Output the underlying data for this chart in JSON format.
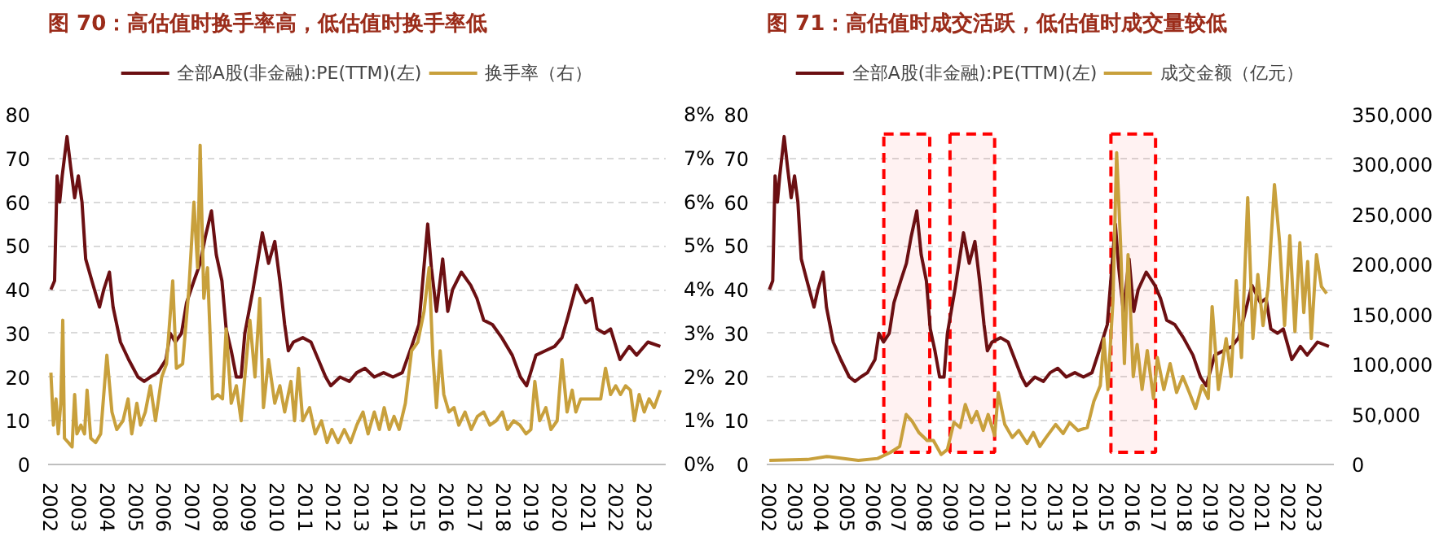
{
  "chart_data": [
    {
      "type": "line",
      "title": "图 70：高估值时换手率高，低估值时换手率低",
      "xlim": [
        2001.9,
        2023.75
      ],
      "xticks": [
        2002,
        2003,
        2004,
        2005,
        2006,
        2007,
        2008,
        2009,
        2010,
        2011,
        2012,
        2013,
        2014,
        2015,
        2016,
        2017,
        2018,
        2019,
        2020,
        2021,
        2022,
        2023
      ],
      "ylim": [
        0,
        80
      ],
      "yticks": [
        0,
        10,
        20,
        30,
        40,
        50,
        60,
        70,
        80
      ],
      "y2lim": [
        0,
        8
      ],
      "y2ticks": [
        {
          "value": 0,
          "label": "0%"
        },
        {
          "value": 1,
          "label": "1%"
        },
        {
          "value": 2,
          "label": "2%"
        },
        {
          "value": 3,
          "label": "3%"
        },
        {
          "value": 4,
          "label": "4%"
        },
        {
          "value": 5,
          "label": "5%"
        },
        {
          "value": 6,
          "label": "6%"
        },
        {
          "value": 7,
          "label": "7%"
        },
        {
          "value": 8,
          "label": "8%"
        }
      ],
      "grid": "y",
      "legend": "top",
      "line_style": "solid",
      "series": [
        {
          "name": "全部A股(非金融):PE(TTM)(左)",
          "color": "#6b0f12",
          "x": [
            2002.0,
            2002.13,
            2002.22,
            2002.31,
            2002.4,
            2002.57,
            2002.7,
            2002.84,
            2002.97,
            2003.1,
            2003.23,
            2003.45,
            2003.72,
            2003.87,
            2004.07,
            2004.2,
            2004.46,
            2004.75,
            2005.08,
            2005.3,
            2005.52,
            2005.78,
            2006.07,
            2006.22,
            2006.4,
            2006.62,
            2006.8,
            2007.06,
            2007.28,
            2007.46,
            2007.68,
            2007.85,
            2008.05,
            2008.2,
            2008.38,
            2008.56,
            2008.73,
            2008.86,
            2009.15,
            2009.48,
            2009.7,
            2009.92,
            2010.1,
            2010.27,
            2010.4,
            2010.58,
            2010.91,
            2011.2,
            2011.46,
            2011.72,
            2011.9,
            2012.23,
            2012.56,
            2012.82,
            2013.11,
            2013.44,
            2013.77,
            2014.1,
            2014.43,
            2014.76,
            2015.02,
            2015.33,
            2015.46,
            2015.64,
            2015.86,
            2016.04,
            2016.21,
            2016.52,
            2016.85,
            2017.07,
            2017.31,
            2017.62,
            2017.95,
            2018.32,
            2018.61,
            2018.83,
            2019.16,
            2019.49,
            2019.82,
            2020.08,
            2020.3,
            2020.59,
            2020.92,
            2021.14,
            2021.32,
            2021.58,
            2021.8,
            2022.13,
            2022.46,
            2022.72,
            2023.12,
            2023.56
          ],
          "values": [
            40,
            42,
            66,
            60,
            66,
            75,
            68,
            61,
            66,
            60,
            47,
            42,
            36,
            40,
            44,
            36,
            28,
            24,
            20,
            19,
            20,
            21,
            24,
            30,
            28,
            30,
            37,
            42,
            46,
            52,
            58,
            48,
            42,
            31,
            26,
            20,
            20,
            30,
            40,
            53,
            46,
            51,
            42,
            32,
            26,
            28,
            29,
            28,
            24,
            20,
            18,
            20,
            19,
            21,
            22,
            20,
            21,
            20,
            21,
            27,
            32,
            55,
            45,
            35,
            47,
            35,
            40,
            44,
            41,
            38,
            33,
            32,
            29,
            25,
            20,
            18,
            25,
            26,
            27,
            29,
            34,
            41,
            37,
            38,
            31,
            30,
            31,
            24,
            27,
            25,
            28,
            27
          ]
        },
        {
          "name": "换手率（右）",
          "color": "#c8a03c",
          "axis": "y2",
          "x": [
            2002.0,
            2002.09,
            2002.18,
            2002.26,
            2002.35,
            2002.42,
            2002.48,
            2002.62,
            2002.75,
            2002.84,
            2002.92,
            2003.06,
            2003.19,
            2003.28,
            2003.41,
            2003.58,
            2003.76,
            2003.98,
            2004.16,
            2004.33,
            2004.55,
            2004.73,
            2004.86,
            2005.04,
            2005.17,
            2005.34,
            2005.52,
            2005.7,
            2005.92,
            2006.09,
            2006.31,
            2006.44,
            2006.66,
            2006.88,
            2007.06,
            2007.19,
            2007.28,
            2007.41,
            2007.54,
            2007.72,
            2007.9,
            2008.07,
            2008.2,
            2008.38,
            2008.56,
            2008.73,
            2008.86,
            2009.04,
            2009.22,
            2009.39,
            2009.52,
            2009.7,
            2009.92,
            2010.1,
            2010.27,
            2010.49,
            2010.62,
            2010.76,
            2010.91,
            2011.15,
            2011.35,
            2011.57,
            2011.77,
            2011.94,
            2012.16,
            2012.38,
            2012.6,
            2012.82,
            2013.04,
            2013.22,
            2013.44,
            2013.62,
            2013.79,
            2013.97,
            2014.14,
            2014.32,
            2014.54,
            2014.76,
            2014.98,
            2015.2,
            2015.38,
            2015.51,
            2015.64,
            2015.77,
            2015.9,
            2016.08,
            2016.26,
            2016.43,
            2016.65,
            2016.87,
            2017.09,
            2017.31,
            2017.53,
            2017.75,
            2017.97,
            2018.15,
            2018.37,
            2018.59,
            2018.81,
            2018.98,
            2019.12,
            2019.29,
            2019.51,
            2019.69,
            2019.91,
            2020.08,
            2020.26,
            2020.44,
            2020.57,
            2020.74,
            2021.01,
            2021.23,
            2021.45,
            2021.62,
            2021.8,
            2021.98,
            2022.15,
            2022.33,
            2022.5,
            2022.64,
            2022.81,
            2022.99,
            2023.16,
            2023.34,
            2023.56
          ],
          "values": [
            2.1,
            0.9,
            1.5,
            0.7,
            1.4,
            3.3,
            0.6,
            0.5,
            0.4,
            1.6,
            0.7,
            0.9,
            0.7,
            1.7,
            0.6,
            0.5,
            0.7,
            2.5,
            1.2,
            0.8,
            1.0,
            1.5,
            0.7,
            1.4,
            0.9,
            1.2,
            1.8,
            1.0,
            2.0,
            2.3,
            4.2,
            2.2,
            2.3,
            4.0,
            6.0,
            4.5,
            7.3,
            3.8,
            4.5,
            1.5,
            1.6,
            1.5,
            3.1,
            1.4,
            1.8,
            1.0,
            2.0,
            3.3,
            2.0,
            3.8,
            1.3,
            2.4,
            1.4,
            1.8,
            1.2,
            1.9,
            1.0,
            2.2,
            1.0,
            1.3,
            0.7,
            1.0,
            0.5,
            0.8,
            0.5,
            0.8,
            0.5,
            0.9,
            1.2,
            0.7,
            1.2,
            0.8,
            1.3,
            0.8,
            1.1,
            0.8,
            1.4,
            2.6,
            2.8,
            3.5,
            4.5,
            2.5,
            1.3,
            2.6,
            1.6,
            1.2,
            1.3,
            0.9,
            1.2,
            0.8,
            1.1,
            1.2,
            0.9,
            1.0,
            1.2,
            0.8,
            1.0,
            0.9,
            0.7,
            0.8,
            1.9,
            1.0,
            1.3,
            0.8,
            1.0,
            2.4,
            1.2,
            1.7,
            1.2,
            1.5,
            1.5,
            1.5,
            1.5,
            2.2,
            1.6,
            1.8,
            1.6,
            1.8,
            1.7,
            1.0,
            1.6,
            1.2,
            1.5,
            1.3,
            1.7
          ]
        }
      ]
    },
    {
      "type": "line",
      "title": "图 71：高估值时成交活跃，低估值时成交量较低",
      "xlim": [
        2001.9,
        2023.75
      ],
      "xticks": [
        2002,
        2003,
        2004,
        2005,
        2006,
        2007,
        2008,
        2009,
        2010,
        2011,
        2012,
        2013,
        2014,
        2015,
        2016,
        2017,
        2018,
        2019,
        2020,
        2021,
        2022,
        2023
      ],
      "ylim": [
        0,
        80
      ],
      "yticks": [
        0,
        10,
        20,
        30,
        40,
        50,
        60,
        70,
        80
      ],
      "y2lim": [
        0,
        350000
      ],
      "y2ticks": [
        0,
        {
          "value": 50000,
          "label": "50,000"
        },
        {
          "value": 100000,
          "label": "100,000"
        },
        {
          "value": 150000,
          "label": "150,000"
        },
        {
          "value": 200000,
          "label": "200,000"
        },
        {
          "value": 250000,
          "label": "250,000"
        },
        {
          "value": 300000,
          "label": "300,000"
        },
        {
          "value": 350000,
          "label": "350,000"
        }
      ],
      "grid": "y",
      "legend": "top",
      "line_style": "solid",
      "bands": [
        {
          "axis": "x",
          "from": 2006.41,
          "to": 2008.18,
          "color": "#ff0000"
        },
        {
          "axis": "x",
          "from": 2008.96,
          "to": 2010.68,
          "color": "#ff0000"
        },
        {
          "axis": "x",
          "from": 2015.16,
          "to": 2016.88,
          "color": "#ff0000"
        }
      ],
      "series": [
        {
          "name": "全部A股(非金融):PE(TTM)(左)",
          "color": "#6b0f12",
          "x": [
            2002.0,
            2002.13,
            2002.22,
            2002.31,
            2002.4,
            2002.57,
            2002.7,
            2002.84,
            2002.97,
            2003.1,
            2003.23,
            2003.45,
            2003.72,
            2003.87,
            2004.07,
            2004.2,
            2004.46,
            2004.75,
            2005.08,
            2005.3,
            2005.52,
            2005.78,
            2006.07,
            2006.22,
            2006.4,
            2006.62,
            2006.8,
            2007.06,
            2007.28,
            2007.46,
            2007.68,
            2007.85,
            2008.05,
            2008.2,
            2008.38,
            2008.56,
            2008.73,
            2008.86,
            2009.15,
            2009.48,
            2009.7,
            2009.92,
            2010.1,
            2010.27,
            2010.4,
            2010.58,
            2010.91,
            2011.2,
            2011.46,
            2011.72,
            2011.9,
            2012.23,
            2012.56,
            2012.82,
            2013.11,
            2013.44,
            2013.77,
            2014.1,
            2014.43,
            2014.76,
            2015.02,
            2015.33,
            2015.46,
            2015.64,
            2015.86,
            2016.04,
            2016.21,
            2016.52,
            2016.85,
            2017.07,
            2017.31,
            2017.62,
            2017.95,
            2018.32,
            2018.61,
            2018.83,
            2019.16,
            2019.49,
            2019.82,
            2020.08,
            2020.3,
            2020.59,
            2020.92,
            2021.14,
            2021.32,
            2021.58,
            2021.8,
            2022.13,
            2022.46,
            2022.72,
            2023.12,
            2023.56
          ],
          "values": [
            40,
            42,
            66,
            60,
            66,
            75,
            68,
            61,
            66,
            60,
            47,
            42,
            36,
            40,
            44,
            36,
            28,
            24,
            20,
            19,
            20,
            21,
            24,
            30,
            28,
            30,
            37,
            42,
            46,
            52,
            58,
            48,
            42,
            31,
            26,
            20,
            20,
            30,
            40,
            53,
            46,
            51,
            42,
            32,
            26,
            28,
            29,
            28,
            24,
            20,
            18,
            20,
            19,
            21,
            22,
            20,
            21,
            20,
            21,
            27,
            32,
            55,
            45,
            35,
            47,
            35,
            40,
            44,
            41,
            38,
            33,
            32,
            29,
            25,
            20,
            18,
            25,
            26,
            27,
            29,
            34,
            41,
            37,
            38,
            31,
            30,
            31,
            24,
            27,
            25,
            28,
            27
          ]
        },
        {
          "name": "成交金额（亿元）",
          "color": "#c8a03c",
          "axis": "y2",
          "x": [
            2002.0,
            2003.47,
            2004.21,
            2005.43,
            2006.17,
            2006.66,
            2007.02,
            2007.27,
            2007.51,
            2007.76,
            2008.08,
            2008.32,
            2008.62,
            2008.86,
            2009.11,
            2009.35,
            2009.55,
            2009.79,
            2009.99,
            2010.24,
            2010.43,
            2010.68,
            2010.82,
            2011.07,
            2011.36,
            2011.61,
            2011.93,
            2012.17,
            2012.42,
            2012.66,
            2013.03,
            2013.32,
            2013.57,
            2013.89,
            2014.25,
            2014.5,
            2014.75,
            2014.89,
            2015.04,
            2015.24,
            2015.38,
            2015.53,
            2015.68,
            2015.82,
            2016.02,
            2016.17,
            2016.36,
            2016.56,
            2016.8,
            2016.95,
            2017.2,
            2017.44,
            2017.69,
            2017.93,
            2018.18,
            2018.42,
            2018.67,
            2018.91,
            2019.06,
            2019.3,
            2019.6,
            2019.79,
            2019.99,
            2020.19,
            2020.43,
            2020.63,
            2020.82,
            2021.02,
            2021.22,
            2021.46,
            2021.66,
            2021.85,
            2022.05,
            2022.25,
            2022.44,
            2022.59,
            2022.74,
            2022.88,
            2023.08,
            2023.27,
            2023.47
          ],
          "values": [
            4000,
            5000,
            8000,
            4000,
            6000,
            12000,
            18000,
            50000,
            43000,
            32000,
            24000,
            24000,
            10000,
            15000,
            42000,
            37000,
            60000,
            42000,
            53000,
            34000,
            50000,
            29000,
            72000,
            40000,
            27000,
            34000,
            21000,
            32000,
            18000,
            27000,
            40000,
            31000,
            42000,
            34000,
            37000,
            63000,
            79000,
            126000,
            75000,
            165000,
            312000,
            222000,
            101000,
            210000,
            88000,
            120000,
            75000,
            114000,
            66000,
            107000,
            75000,
            101000,
            72000,
            88000,
            72000,
            56000,
            79000,
            66000,
            158000,
            75000,
            126000,
            88000,
            184000,
            107000,
            267000,
            126000,
            190000,
            139000,
            178000,
            280000,
            222000,
            139000,
            229000,
            133000,
            222000,
            152000,
            203000,
            126000,
            210000,
            178000,
            171000
          ]
        }
      ]
    }
  ]
}
